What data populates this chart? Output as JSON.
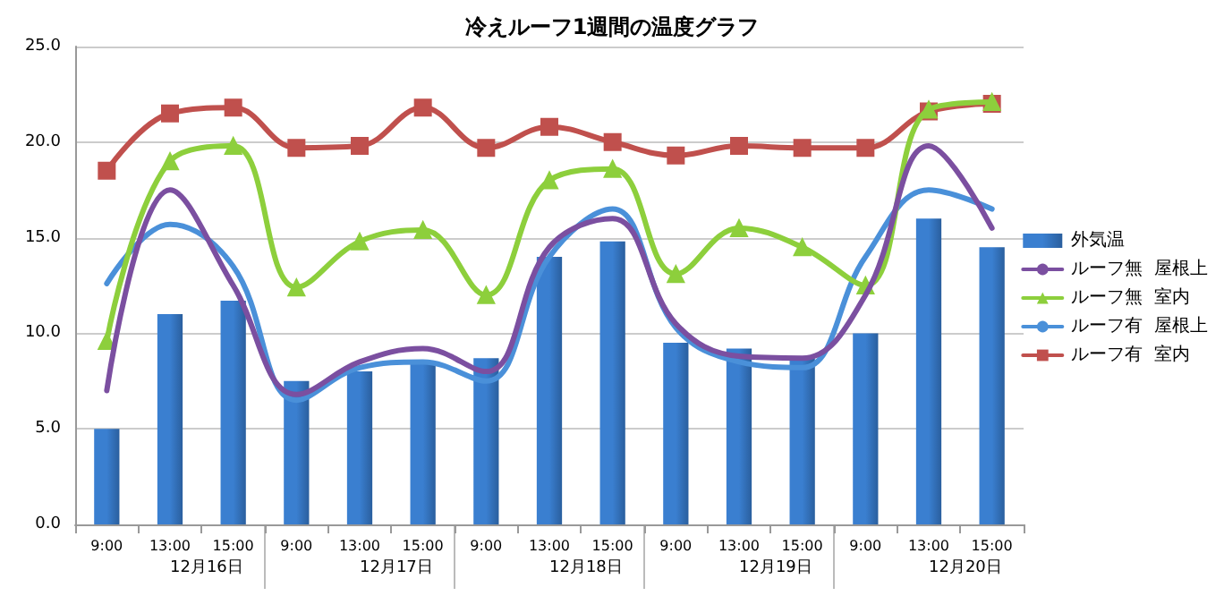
{
  "chart_data": {
    "type": "bar",
    "title": "冷えルーフ1週間の温度グラフ",
    "categories": [
      "9:00",
      "13:00",
      "15:00",
      "9:00",
      "13:00",
      "15:00",
      "9:00",
      "13:00",
      "15:00",
      "9:00",
      "13:00",
      "15:00",
      "9:00",
      "13:00",
      "15:00"
    ],
    "annotations": [
      "12月16日",
      "12月17日",
      "12月18日",
      "12月19日",
      "12月20日"
    ],
    "series": [
      {
        "name": "外気温",
        "color": "#3a7fd0",
        "values": [
          5.0,
          11.0,
          11.7,
          7.5,
          8.0,
          8.5,
          8.7,
          14.0,
          14.8,
          9.5,
          9.2,
          8.7,
          10.0,
          16.0,
          14.5
        ]
      },
      {
        "name": "ルーフ無  屋根上",
        "type": "line",
        "color": "#7b4fa0",
        "marker": "none",
        "values": [
          7.0,
          17.5,
          12.5,
          6.8,
          8.5,
          9.2,
          8.0,
          14.5,
          16.0,
          10.5,
          8.8,
          8.7,
          12.0,
          19.8,
          15.5
        ]
      },
      {
        "name": "ルーフ無  室内",
        "type": "line",
        "color": "#8dcf3c",
        "marker": "triangle",
        "values": [
          9.6,
          19.0,
          19.8,
          12.4,
          14.8,
          15.4,
          12.0,
          18.0,
          18.6,
          13.1,
          15.5,
          14.5,
          12.5,
          21.7,
          22.1
        ]
      },
      {
        "name": "ルーフ有  屋根上",
        "type": "line",
        "color": "#4a90d9",
        "marker": "none",
        "values": [
          12.6,
          15.7,
          13.5,
          6.5,
          8.2,
          8.5,
          7.5,
          14.0,
          16.5,
          10.3,
          8.5,
          8.2,
          14.0,
          17.5,
          16.5
        ]
      },
      {
        "name": "ルーフ有  室内",
        "type": "line",
        "color": "#c0504d",
        "marker": "square",
        "values": [
          18.5,
          21.5,
          21.8,
          19.7,
          19.8,
          21.8,
          19.7,
          20.8,
          20.0,
          19.3,
          19.8,
          19.7,
          19.7,
          21.6,
          22.0
        ]
      }
    ],
    "ylim": [
      0,
      25
    ],
    "yticks": [
      {
        "value": 0,
        "label": "0.0"
      },
      {
        "value": 5,
        "label": "5.0"
      },
      {
        "value": 10,
        "label": "10.0"
      },
      {
        "value": 15,
        "label": "15.0"
      },
      {
        "value": 20,
        "label": "20.0"
      },
      {
        "value": 25,
        "label": "25.0"
      }
    ],
    "grid": "y",
    "legend": "right"
  }
}
